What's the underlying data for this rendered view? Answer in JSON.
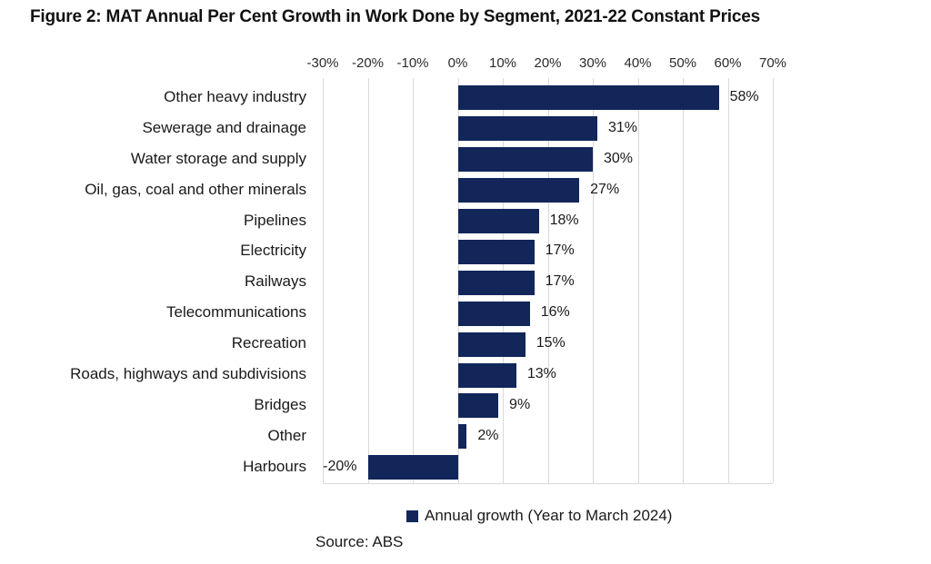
{
  "figure": {
    "title": "Figure 2: MAT Annual Per Cent Growth in Work Done by Segment, 2021-22 Constant Prices",
    "source": "Source: ABS"
  },
  "chart_data": {
    "type": "bar",
    "orientation": "horizontal",
    "title": "Figure 2: MAT Annual Per Cent Growth in Work Done by Segment, 2021-22 Constant Prices",
    "categories": [
      "Other heavy industry",
      "Sewerage and drainage",
      "Water storage and supply",
      "Oil, gas, coal and other minerals",
      "Pipelines",
      "Electricity",
      "Railways",
      "Telecommunications",
      "Recreation",
      "Roads, highways and subdivisions",
      "Bridges",
      "Other",
      "Harbours"
    ],
    "series": [
      {
        "name": "Annual growth (Year to March 2024)",
        "values": [
          58,
          31,
          30,
          27,
          18,
          17,
          17,
          16,
          15,
          13,
          9,
          2,
          -20
        ]
      }
    ],
    "data_labels": [
      "58%",
      "31%",
      "30%",
      "27%",
      "18%",
      "17%",
      "17%",
      "16%",
      "15%",
      "13%",
      "9%",
      "2%",
      "-20%"
    ],
    "x_ticks": [
      -30,
      -20,
      -10,
      0,
      10,
      20,
      30,
      40,
      50,
      60,
      70
    ],
    "x_tick_labels": [
      "-30%",
      "-20%",
      "-10%",
      "0%",
      "10%",
      "20%",
      "30%",
      "40%",
      "50%",
      "60%",
      "70%"
    ],
    "xlim": [
      -30,
      70
    ],
    "grid": "vertical",
    "legend_position": "bottom",
    "bar_color": "#12265a",
    "gridline_color": "#d9d9d9",
    "xlabel": "",
    "ylabel": ""
  }
}
